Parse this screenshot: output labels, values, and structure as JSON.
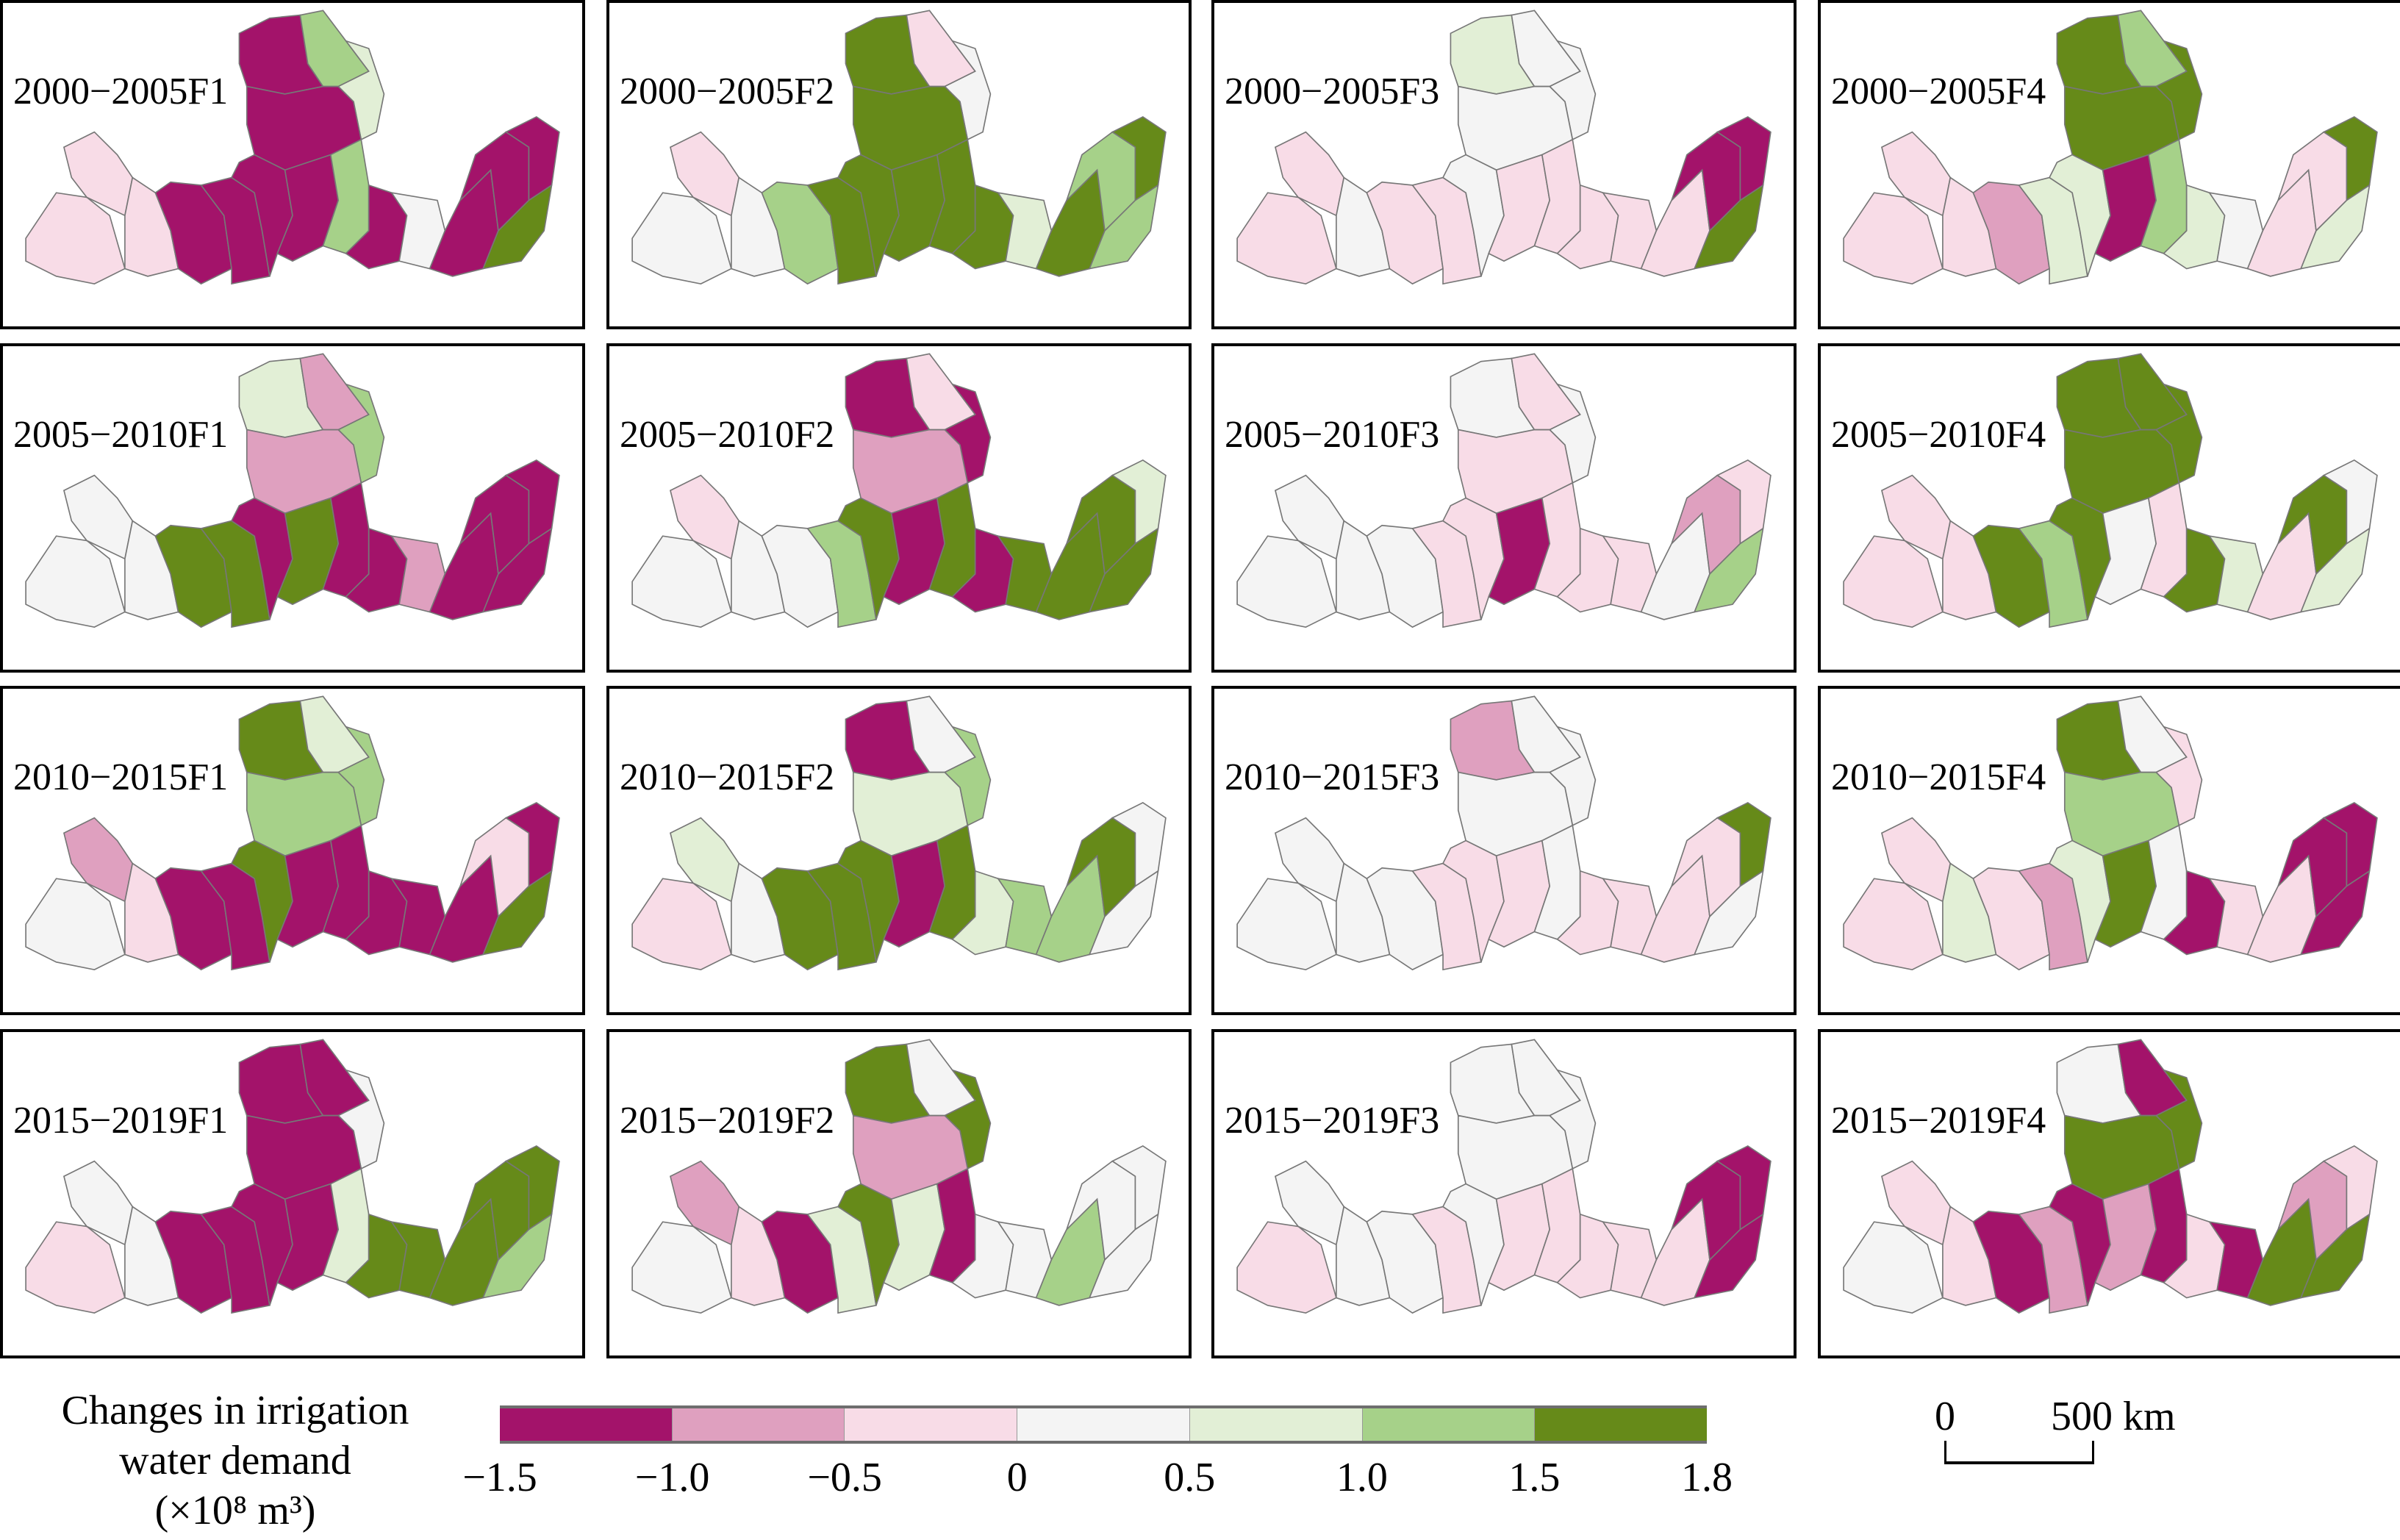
{
  "legend": {
    "title_line1": "Changes in irrigation",
    "title_line2": "water demand",
    "title_line3": "(×10⁸ m³)",
    "class_colors": [
      "#a3136a",
      "#dfa0bf",
      "#f8dce7",
      "#f4f4f4",
      "#e2efd6",
      "#a6d189",
      "#668a19"
    ],
    "ticks": [
      "−1.5",
      "−1.0",
      "−0.5",
      "0",
      "0.5",
      "1.0",
      "1.5",
      "1.8"
    ]
  },
  "scale": {
    "zero": "0",
    "label": "500 km"
  },
  "panels": [
    {
      "label": "2000−2005F1",
      "classes": [
        2,
        2,
        2,
        0,
        0,
        0,
        5,
        4,
        0,
        0,
        0,
        5,
        0,
        3,
        0,
        0,
        0,
        6
      ]
    },
    {
      "label": "2000−2005F2",
      "classes": [
        3,
        2,
        3,
        5,
        6,
        6,
        2,
        3,
        6,
        6,
        6,
        6,
        6,
        4,
        6,
        5,
        6,
        5
      ]
    },
    {
      "label": "2000−2005F3",
      "classes": [
        2,
        2,
        3,
        2,
        2,
        4,
        3,
        3,
        3,
        3,
        2,
        2,
        2,
        2,
        2,
        0,
        0,
        6
      ]
    },
    {
      "label": "2000−2005F4",
      "classes": [
        2,
        2,
        2,
        1,
        4,
        6,
        5,
        6,
        6,
        4,
        0,
        5,
        4,
        3,
        2,
        2,
        6,
        4
      ]
    },
    {
      "label": "2005−2010F1",
      "classes": [
        3,
        3,
        3,
        6,
        6,
        4,
        1,
        5,
        1,
        0,
        6,
        0,
        0,
        1,
        0,
        0,
        0,
        0
      ]
    },
    {
      "label": "2005−2010F2",
      "classes": [
        3,
        2,
        3,
        3,
        5,
        0,
        2,
        0,
        1,
        6,
        0,
        6,
        0,
        6,
        6,
        6,
        4,
        6
      ]
    },
    {
      "label": "2005−2010F3",
      "classes": [
        3,
        3,
        3,
        3,
        2,
        3,
        2,
        3,
        2,
        2,
        0,
        2,
        2,
        2,
        3,
        1,
        2,
        5
      ]
    },
    {
      "label": "2005−2010F4",
      "classes": [
        2,
        2,
        2,
        6,
        5,
        6,
        6,
        6,
        6,
        6,
        3,
        2,
        6,
        4,
        2,
        6,
        3,
        4
      ]
    },
    {
      "label": "2010−2015F1",
      "classes": [
        3,
        1,
        2,
        0,
        0,
        6,
        4,
        5,
        5,
        6,
        0,
        0,
        0,
        0,
        0,
        2,
        0,
        6
      ]
    },
    {
      "label": "2010−2015F2",
      "classes": [
        2,
        4,
        3,
        6,
        6,
        0,
        3,
        5,
        4,
        6,
        0,
        6,
        4,
        5,
        5,
        6,
        3,
        3
      ]
    },
    {
      "label": "2010−2015F3",
      "classes": [
        3,
        3,
        3,
        3,
        2,
        1,
        3,
        3,
        3,
        2,
        2,
        3,
        2,
        2,
        2,
        2,
        6,
        3
      ]
    },
    {
      "label": "2010−2015F4",
      "classes": [
        2,
        2,
        4,
        2,
        1,
        6,
        3,
        2,
        5,
        4,
        6,
        3,
        0,
        2,
        2,
        0,
        0,
        0
      ]
    },
    {
      "label": "2015−2019F1",
      "classes": [
        2,
        3,
        3,
        0,
        0,
        0,
        0,
        3,
        0,
        0,
        0,
        4,
        6,
        6,
        6,
        6,
        6,
        5
      ]
    },
    {
      "label": "2015−2019F2",
      "classes": [
        3,
        1,
        2,
        0,
        4,
        6,
        3,
        6,
        1,
        6,
        4,
        0,
        3,
        3,
        5,
        3,
        3,
        3
      ]
    },
    {
      "label": "2015−2019F3",
      "classes": [
        2,
        3,
        3,
        3,
        2,
        3,
        3,
        3,
        3,
        3,
        2,
        2,
        2,
        2,
        2,
        0,
        0,
        0
      ]
    },
    {
      "label": "2015−2019F4",
      "classes": [
        3,
        2,
        2,
        0,
        1,
        3,
        0,
        6,
        6,
        0,
        1,
        0,
        2,
        0,
        6,
        1,
        2,
        6
      ]
    }
  ]
}
